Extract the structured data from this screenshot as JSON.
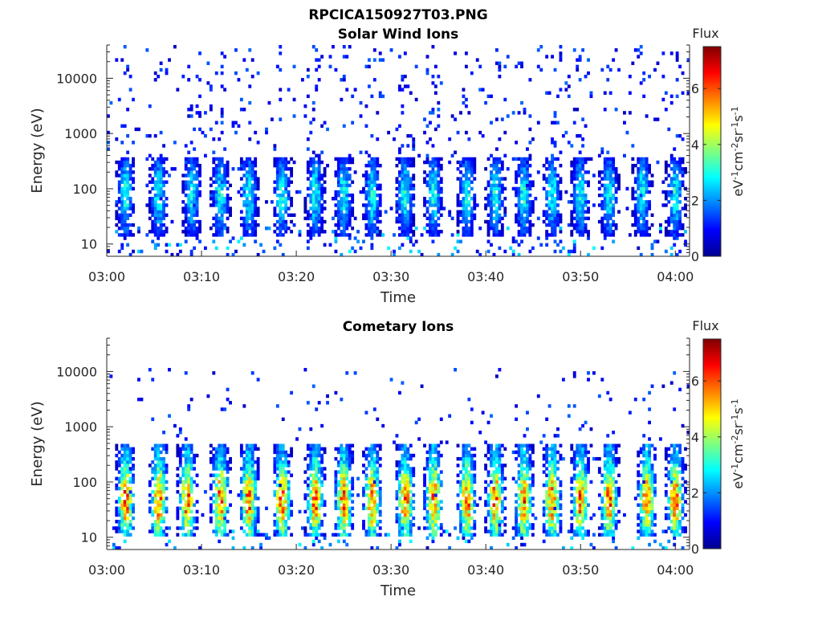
{
  "figure_title": "RPCICA150927T03.PNG",
  "chart_data": [
    {
      "type": "heatmap",
      "title": "Solar Wind Ions",
      "xlabel": "Time",
      "ylabel": "Energy (eV)",
      "x_ticks": [
        "03:00",
        "03:10",
        "03:20",
        "03:30",
        "03:40",
        "03:50",
        "04:00"
      ],
      "x_range_minutes": [
        0,
        61.5
      ],
      "y_scale": "log",
      "y_ticks": [
        10,
        100,
        1000,
        10000
      ],
      "y_tick_labels": [
        "10",
        "100",
        "1000",
        "10000"
      ],
      "y_range": [
        6,
        40000
      ],
      "colorbar": {
        "title": "Flux",
        "label": "eV-1cm-2sr-1s-1",
        "range": [
          0,
          7.5
        ],
        "ticks": [
          0,
          2,
          4,
          6
        ],
        "colormap": "jet"
      },
      "burst_centers_minutes": [
        2,
        5.5,
        9,
        12,
        15,
        18.5,
        22,
        25,
        28,
        31.5,
        34.5,
        38,
        41,
        44,
        47,
        50,
        53,
        56.5,
        60
      ],
      "core_energy_range_ev": [
        20,
        300
      ],
      "peak_flux": 3.0,
      "background": "sparse scattered counts up to 40000 eV, flux ~0.5-1.5",
      "grid": false
    },
    {
      "type": "heatmap",
      "title": "Cometary Ions",
      "xlabel": "Time",
      "ylabel": "Energy (eV)",
      "x_ticks": [
        "03:00",
        "03:10",
        "03:20",
        "03:30",
        "03:40",
        "03:50",
        "04:00"
      ],
      "x_range_minutes": [
        0,
        61.5
      ],
      "y_scale": "log",
      "y_ticks": [
        10,
        100,
        1000,
        10000
      ],
      "y_tick_labels": [
        "10",
        "100",
        "1000",
        "10000"
      ],
      "y_range": [
        6,
        40000
      ],
      "colorbar": {
        "title": "Flux",
        "label": "eV-1cm-2sr-1s-1",
        "range": [
          0,
          7.5
        ],
        "ticks": [
          0,
          2,
          4,
          6
        ],
        "colormap": "jet"
      },
      "burst_centers_minutes": [
        2,
        5.5,
        8.5,
        12,
        15,
        18.5,
        22,
        25,
        28,
        31.5,
        34.5,
        38,
        41,
        44,
        47,
        50,
        53,
        57,
        60
      ],
      "core_energy_range_ev": [
        15,
        400
      ],
      "peak_flux": 6.0,
      "background": "sparse scattered counts up to 10000 eV, flux ~0.5-1.5",
      "grid": false
    }
  ]
}
